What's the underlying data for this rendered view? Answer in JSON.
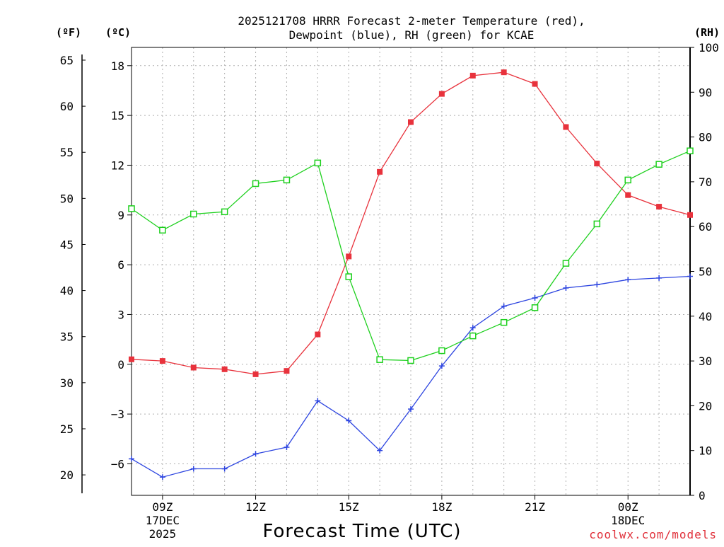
{
  "chart_data": {
    "type": "line",
    "title_lines": [
      "2025121708 HRRR Forecast 2-meter Temperature (red),",
      "Dewpoint (blue), RH (green) for KCAE"
    ],
    "xlabel": "Forecast Time (UTC)",
    "credit": "coolwx.com/models",
    "units": {
      "left_outer": "(ºF)",
      "left_inner": "(ºC)",
      "right": "(RH)"
    },
    "x_hours_utc": [
      8,
      9,
      10,
      11,
      12,
      13,
      14,
      15,
      16,
      17,
      18,
      19,
      20,
      21,
      22,
      23,
      24,
      25,
      26
    ],
    "x_ticks": [
      {
        "hour": 9,
        "lines": [
          "09Z",
          "17DEC",
          "2025"
        ]
      },
      {
        "hour": 12,
        "lines": [
          "12Z"
        ]
      },
      {
        "hour": 15,
        "lines": [
          "15Z"
        ]
      },
      {
        "hour": 18,
        "lines": [
          "18Z"
        ]
      },
      {
        "hour": 21,
        "lines": [
          "21Z"
        ]
      },
      {
        "hour": 24,
        "lines": [
          "00Z",
          "18DEC"
        ]
      }
    ],
    "xlim": [
      8,
      26
    ],
    "celsius_axis": {
      "ylim": [
        -7.9,
        19.1
      ],
      "ticks": [
        "18",
        "15",
        "12",
        "9",
        "6",
        "3",
        "0",
        "−3",
        "−6"
      ],
      "tick_values": [
        18,
        15,
        12,
        9,
        6,
        3,
        0,
        -3,
        -6
      ]
    },
    "fahrenheit_axis": {
      "ticks": [
        "65",
        "60",
        "55",
        "50",
        "45",
        "40",
        "35",
        "30",
        "25",
        "20"
      ],
      "tick_values": [
        65,
        60,
        55,
        50,
        45,
        40,
        35,
        30,
        25,
        20
      ]
    },
    "rh_axis": {
      "ylim": [
        0,
        100
      ],
      "ticks": [
        "100",
        "90",
        "80",
        "70",
        "60",
        "50",
        "40",
        "30",
        "20",
        "10",
        "0"
      ],
      "tick_values": [
        100,
        90,
        80,
        70,
        60,
        50,
        40,
        30,
        20,
        10,
        0
      ]
    },
    "series": [
      {
        "name": "2-meter Temperature (°C)",
        "color": "#e8323c",
        "marker": "filled-square",
        "axis": "celsius",
        "values": [
          0.3,
          0.2,
          -0.2,
          -0.3,
          -0.6,
          -0.4,
          1.8,
          6.5,
          11.6,
          14.6,
          16.3,
          17.4,
          17.6,
          16.9,
          14.3,
          12.1,
          10.2,
          9.5,
          9.0
        ]
      },
      {
        "name": "Dewpoint (°C)",
        "color": "#2d45e0",
        "marker": "plus",
        "axis": "celsius",
        "values": [
          -5.7,
          -6.8,
          -6.3,
          -6.3,
          -5.4,
          -5.0,
          -2.2,
          -3.4,
          -5.2,
          -2.7,
          -0.1,
          2.2,
          3.5,
          4.0,
          4.6,
          4.8,
          5.1,
          5.2,
          5.3
        ]
      },
      {
        "name": "Relative Humidity (%)",
        "color": "#1ed01e",
        "marker": "open-square",
        "axis": "rh",
        "values": [
          64.0,
          59.2,
          62.8,
          63.3,
          69.6,
          70.4,
          74.2,
          48.8,
          30.3,
          30.1,
          32.3,
          35.6,
          38.6,
          41.9,
          51.8,
          60.6,
          70.4,
          73.9,
          76.9
        ]
      }
    ],
    "grid": true
  }
}
